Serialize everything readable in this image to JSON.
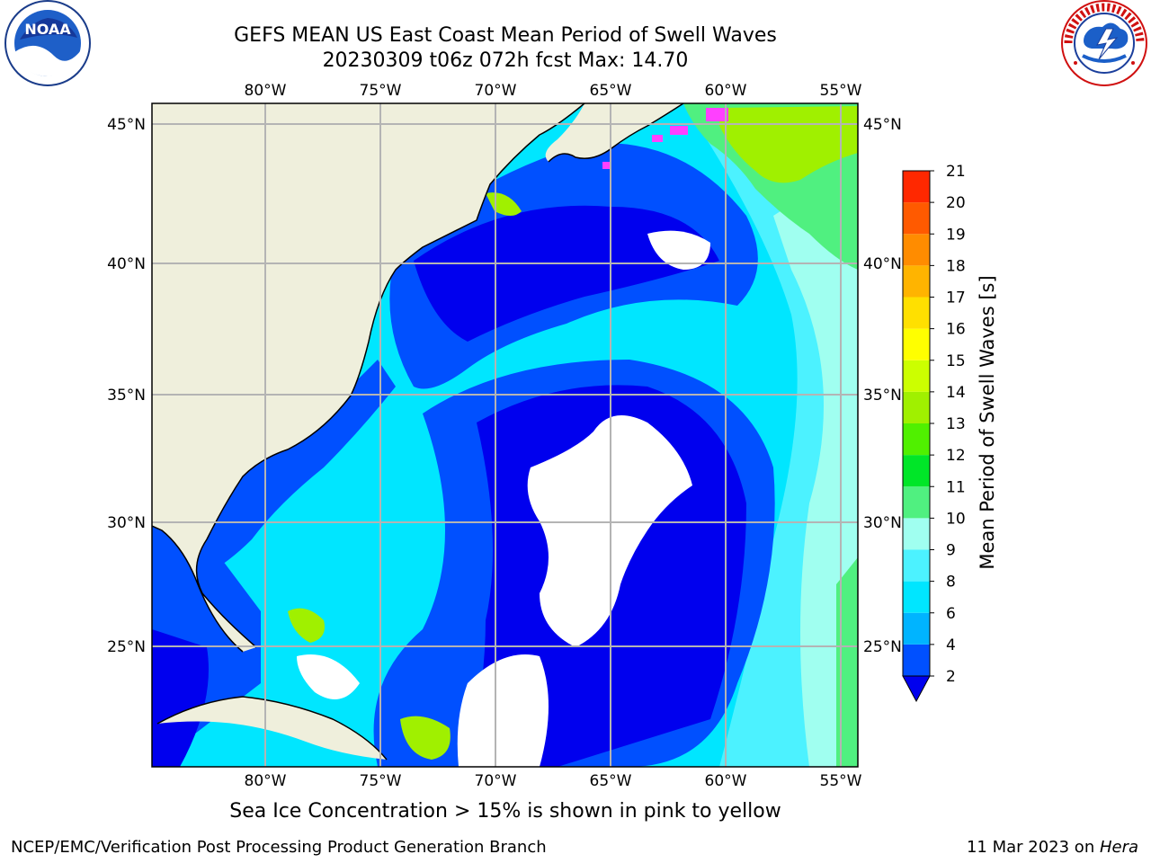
{
  "title_line1": "GEFS MEAN US East Coast Mean Period of Swell Waves",
  "title_line2": "20230309 t06z 072h fcst   Max: 14.70",
  "note": "Sea Ice Concentration > 15% is shown in pink to yellow",
  "footer_left": "NCEP/EMC/Verification Post Processing Product Generation Branch",
  "footer_date": "11 Mar 2023 on ",
  "footer_host": "Hera",
  "logo_left": "NOAA",
  "logo_right_text": "NATIONAL WEATHER SERVICE",
  "map": {
    "lon_labels": [
      "80°W",
      "75°W",
      "70°W",
      "65°W",
      "60°W",
      "55°W"
    ],
    "lat_labels": [
      "45°N",
      "40°N",
      "35°N",
      "30°N",
      "25°N"
    ]
  },
  "colorbar": {
    "label": "Mean Period of Swell Waves [s]",
    "ticks": [
      "2",
      "4",
      "6",
      "8",
      "9",
      "10",
      "11",
      "12",
      "13",
      "14",
      "15",
      "16",
      "17",
      "18",
      "19",
      "20",
      "21"
    ],
    "colors": [
      "#0050ff",
      "#00b4ff",
      "#00e6ff",
      "#4cf2ff",
      "#a0fff0",
      "#50f080",
      "#00e628",
      "#50f000",
      "#a0f000",
      "#ccff00",
      "#ffff00",
      "#ffe000",
      "#ffb400",
      "#ff8c00",
      "#ff5a00",
      "#ff2800"
    ],
    "extend_color": "#0000ee"
  }
}
